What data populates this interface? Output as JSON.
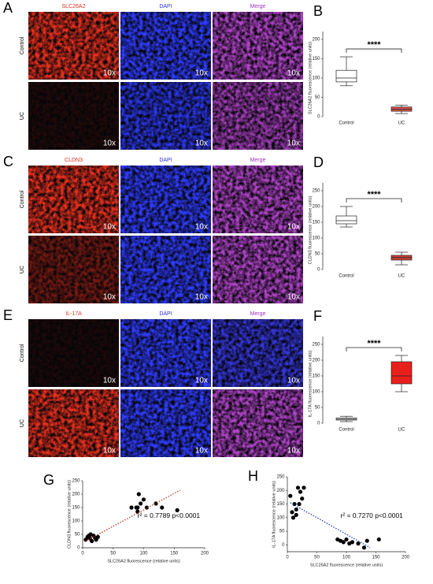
{
  "image_panels": [
    {
      "letter": "A",
      "columns": [
        "SLC26A2",
        "DAPI",
        "Merge"
      ],
      "rows": [
        "Control",
        "UC"
      ],
      "magnification": "10x"
    },
    {
      "letter": "C",
      "columns": [
        "CLDN3",
        "DAPI",
        "Merge"
      ],
      "rows": [
        "Control",
        "UC"
      ],
      "magnification": "10x"
    },
    {
      "letter": "E",
      "columns": [
        "IL-17A",
        "DAPI",
        "Merge"
      ],
      "rows": [
        "Control",
        "UC"
      ],
      "magnification": "10x"
    }
  ],
  "chart_data": [
    {
      "type": "box",
      "panel": "B",
      "y_label": "SLC26A2 fluorescence (relative units)",
      "categories": [
        "Control",
        "UC"
      ],
      "boxes": [
        {
          "min": 80,
          "q1": 90,
          "median": 100,
          "q3": 120,
          "max": 155,
          "color": "#ffffff"
        },
        {
          "min": 8,
          "q1": 14,
          "median": 19,
          "q3": 25,
          "max": 30,
          "color": "#d9534f"
        }
      ],
      "ylim": [
        0,
        200
      ],
      "yticks": [
        0,
        50,
        100,
        150,
        200
      ],
      "annotation": "****"
    },
    {
      "type": "box",
      "panel": "D",
      "y_label": "CLDN3 fluorescence (relative units)",
      "categories": [
        "Control",
        "UC"
      ],
      "boxes": [
        {
          "min": 135,
          "q1": 145,
          "median": 155,
          "q3": 170,
          "max": 200,
          "color": "#ffffff"
        },
        {
          "min": 15,
          "q1": 30,
          "median": 38,
          "q3": 45,
          "max": 55,
          "color": "#c9443c"
        }
      ],
      "ylim": [
        0,
        250
      ],
      "yticks": [
        0,
        50,
        100,
        150,
        200,
        250
      ],
      "annotation": "****"
    },
    {
      "type": "box",
      "panel": "F",
      "y_label": "IL-17A fluorescence (relative units)",
      "categories": [
        "Control",
        "UC"
      ],
      "boxes": [
        {
          "min": 5,
          "q1": 10,
          "median": 13,
          "q3": 17,
          "max": 22,
          "color": "#ffffff"
        },
        {
          "min": 100,
          "q1": 125,
          "median": 150,
          "q3": 195,
          "max": 215,
          "color": "#e8201c"
        }
      ],
      "ylim": [
        0,
        250
      ],
      "yticks": [
        0,
        50,
        100,
        150,
        200,
        250
      ],
      "annotation": "****"
    },
    {
      "type": "scatter",
      "panel": "G",
      "x_label": "SLC26A2 fluorescence (relative units)",
      "y_label": "CLDN3 fluorescence (relative units)",
      "x": [
        5,
        8,
        10,
        12,
        13,
        15,
        18,
        20,
        22,
        25,
        80,
        88,
        90,
        92,
        95,
        100,
        105,
        120,
        130,
        155,
        90
      ],
      "y": [
        30,
        40,
        45,
        35,
        50,
        25,
        45,
        38,
        30,
        40,
        150,
        150,
        135,
        200,
        165,
        180,
        150,
        165,
        150,
        140,
        150
      ],
      "color": "#000000",
      "fit": {
        "x": [
          5,
          160
        ],
        "y": [
          25,
          215
        ],
        "color": "#c0392b"
      },
      "xlim": [
        0,
        200
      ],
      "xticks": [
        0,
        50,
        100,
        150,
        200
      ],
      "ylim": [
        0,
        250
      ],
      "yticks": [
        0,
        50,
        100,
        150,
        200,
        250
      ],
      "annotation": "r² = 0.7789  p<0.0001"
    },
    {
      "type": "scatter",
      "panel": "H",
      "x_label": "SLC26A2 fluorescence (relative units)",
      "y_label": "IL-17A fluorescence (relative units)",
      "x": [
        5,
        8,
        10,
        12,
        15,
        18,
        20,
        22,
        25,
        28,
        15,
        85,
        90,
        95,
        100,
        105,
        110,
        120,
        135,
        130,
        155
      ],
      "y": [
        180,
        120,
        100,
        150,
        110,
        210,
        150,
        195,
        170,
        210,
        130,
        20,
        15,
        10,
        20,
        5,
        10,
        5,
        15,
        -10,
        20
      ],
      "color": "#000000",
      "fit": {
        "x": [
          5,
          140
        ],
        "y": [
          155,
          -10
        ],
        "color": "#1f3fbf"
      },
      "xlim": [
        0,
        200
      ],
      "xticks": [
        0,
        50,
        100,
        150,
        200
      ],
      "ylim": [
        -25,
        250
      ],
      "yticks": [
        0,
        50,
        100,
        150,
        200,
        250
      ],
      "annotation": "r² = 0.7270  p<0.0001"
    }
  ]
}
